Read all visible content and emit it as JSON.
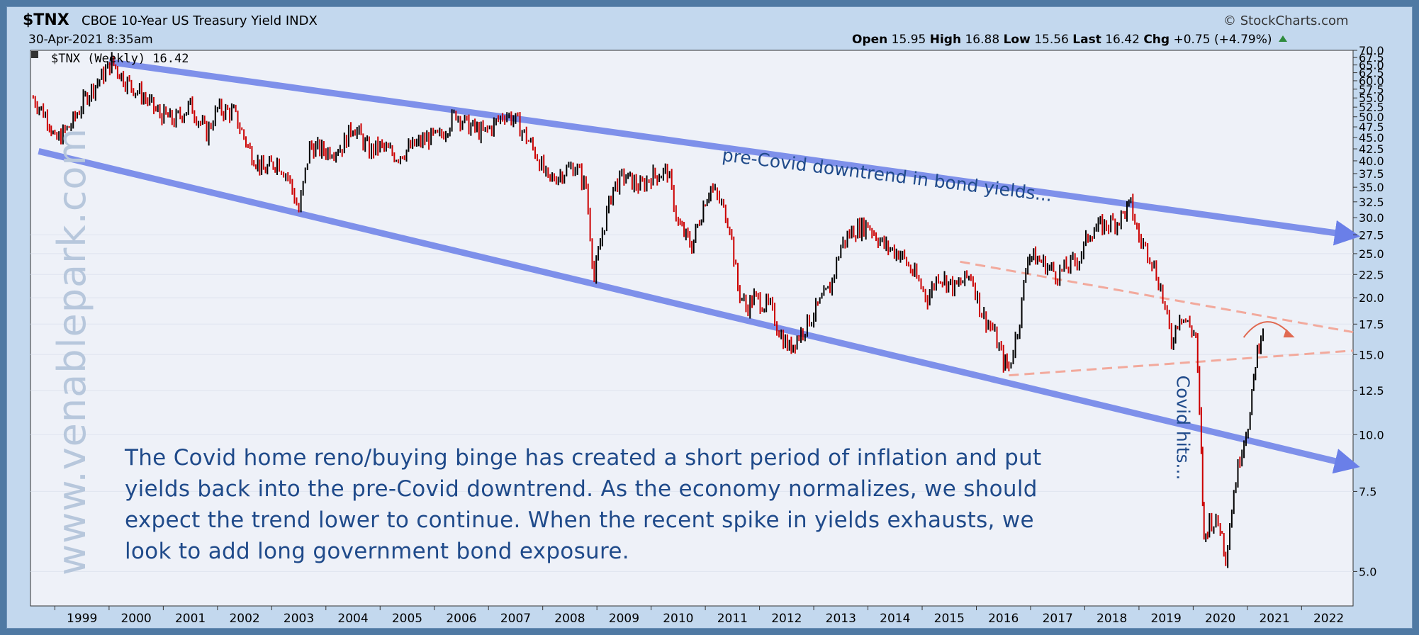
{
  "header": {
    "symbol": "$TNX",
    "name": "CBOE 10-Year US Treasury Yield INDX",
    "date": "30-Apr-2021 8:35am",
    "copyright": "© StockCharts.com",
    "quote": {
      "open_label": "Open",
      "open": "15.95",
      "high_label": "High",
      "high": "16.88",
      "low_label": "Low",
      "low": "15.56",
      "last_label": "Last",
      "last": "16.42",
      "chg_label": "Chg",
      "chg": "+0.75 (+4.79%)"
    }
  },
  "colors": {
    "frame": "#c3d8ee",
    "plot_bg": "#eef1f8",
    "price_up": "#000000",
    "price_down": "#cc0000",
    "trend": "#5b6fe0",
    "triangle": "#f2a99c",
    "annotation": "#1f4a8a"
  },
  "watermark": "www.venablepark.com",
  "note": [
    "The Covid home reno/buying binge has created a short period of inflation and put",
    "yields back into the pre-Covid downtrend. As the economy normalizes, we should",
    "expect the trend lower to continue. When the recent spike in yields exhausts, we",
    "look to add long government bond exposure."
  ],
  "chart_data": {
    "type": "line",
    "legend": "$TNX (Weekly) 16.42",
    "y_scale": "log",
    "ylim": [
      4.2,
      70.0
    ],
    "xlim": [
      1998.55,
      2022.95
    ],
    "x_ticks": [
      "1999",
      "2000",
      "2001",
      "2002",
      "2003",
      "2004",
      "2005",
      "2006",
      "2007",
      "2008",
      "2009",
      "2010",
      "2011",
      "2012",
      "2013",
      "2014",
      "2015",
      "2016",
      "2017",
      "2018",
      "2019",
      "2020",
      "2021",
      "2022"
    ],
    "y_ticks": [
      "5.0",
      "7.5",
      "10.0",
      "12.5",
      "15.0",
      "17.5",
      "20.0",
      "22.5",
      "25.0",
      "27.5",
      "30.0",
      "32.5",
      "35.0",
      "37.5",
      "40.0",
      "42.5",
      "45.0",
      "47.5",
      "50.0",
      "52.5",
      "55.0",
      "57.5",
      "60.0",
      "62.5",
      "65.0",
      "67.5",
      "70.0"
    ],
    "series": [
      {
        "values_x": [
          1998.6,
          1998.9,
          1999.0,
          1999.3,
          1999.6,
          1999.9,
          2000.05,
          2000.3,
          2000.6,
          2000.9,
          2001.2,
          2001.5,
          2001.8,
          2002.0,
          2002.3,
          2002.6,
          2002.85,
          2003.1,
          2003.3,
          2003.5,
          2003.7,
          2004.0,
          2004.3,
          2004.5,
          2004.8,
          2005.0,
          2005.3,
          2005.6,
          2005.9,
          2006.1,
          2006.4,
          2006.6,
          2006.9,
          2007.1,
          2007.3,
          2007.5,
          2007.7,
          2007.9,
          2008.1,
          2008.4,
          2008.6,
          2008.8,
          2008.95,
          2009.1,
          2009.3,
          2009.5,
          2009.8,
          2010.0,
          2010.3,
          2010.5,
          2010.75,
          2011.0,
          2011.1,
          2011.3,
          2011.45,
          2011.6,
          2011.75,
          2011.9,
          2012.2,
          2012.4,
          2012.55,
          2012.8,
          2013.0,
          2013.3,
          2013.5,
          2013.7,
          2014.0,
          2014.3,
          2014.6,
          2014.9,
          2015.1,
          2015.3,
          2015.6,
          2015.9,
          2016.1,
          2016.3,
          2016.5,
          2016.6,
          2016.8,
          2016.95,
          2017.2,
          2017.5,
          2017.7,
          2017.9,
          2018.1,
          2018.4,
          2018.6,
          2018.85,
          2019.0,
          2019.2,
          2019.4,
          2019.6,
          2019.75,
          2019.9,
          2020.05,
          2020.15,
          2020.2,
          2020.3,
          2020.5,
          2020.6,
          2020.75,
          2020.9,
          2021.05,
          2021.15,
          2021.25,
          2021.33
        ],
        "values_y": [
          55.0,
          49.0,
          44.0,
          48.0,
          56.0,
          62.0,
          66.0,
          60.0,
          56.0,
          51.0,
          49.0,
          53.0,
          46.0,
          52.0,
          51.0,
          42.0,
          38.0,
          40.0,
          37.0,
          31.0,
          43.0,
          42.0,
          43.0,
          48.0,
          42.0,
          43.0,
          41.0,
          43.0,
          45.0,
          45.0,
          51.0,
          48.0,
          46.0,
          48.0,
          51.0,
          49.0,
          45.0,
          41.0,
          36.0,
          38.0,
          39.0,
          35.0,
          22.0,
          28.0,
          35.0,
          37.0,
          35.0,
          37.0,
          38.0,
          29.0,
          26.0,
          33.0,
          35.0,
          32.0,
          29.0,
          21.0,
          19.0,
          20.0,
          19.0,
          16.5,
          15.5,
          17.0,
          18.5,
          21.0,
          26.0,
          28.0,
          29.0,
          26.0,
          25.0,
          22.0,
          20.0,
          22.5,
          21.0,
          22.5,
          18.5,
          17.0,
          14.5,
          14.0,
          18.0,
          25.0,
          24.0,
          22.5,
          23.5,
          24.5,
          28.0,
          29.0,
          29.5,
          32.0,
          27.0,
          25.0,
          21.0,
          16.0,
          18.5,
          17.5,
          16.5,
          9.0,
          5.8,
          6.5,
          6.3,
          5.4,
          7.5,
          9.5,
          11.0,
          14.5,
          16.8,
          16.4
        ]
      }
    ],
    "trendlines": [
      {
        "name": "upper",
        "from": [
          2000.0,
          66.0
        ],
        "to": [
          2022.95,
          27.5
        ]
      },
      {
        "name": "lower",
        "from": [
          1998.7,
          42.0
        ],
        "to": [
          2022.95,
          8.6
        ]
      },
      {
        "name": "triangle-top",
        "from": [
          2015.7,
          24.0
        ],
        "to": [
          2022.95,
          16.8
        ]
      },
      {
        "name": "triangle-bottom",
        "from": [
          2016.6,
          13.5
        ],
        "to": [
          2022.95,
          15.3
        ]
      }
    ],
    "annotations": [
      {
        "text": "pre-Covid downtrend in bond yields...",
        "x": 2011.3,
        "y": 40.0
      },
      {
        "text": "Covid hits...",
        "x": 2019.7,
        "y": 13.5
      }
    ]
  }
}
